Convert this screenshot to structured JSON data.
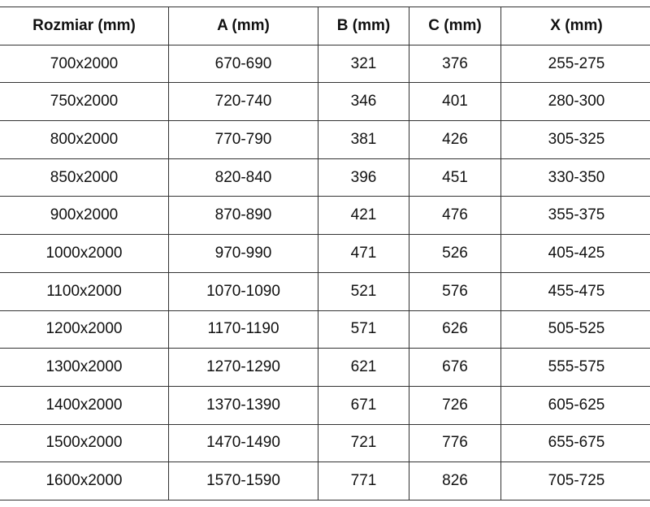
{
  "headers": [
    "Rozmiar (mm)",
    "A (mm)",
    "B (mm)",
    "C (mm)",
    "X (mm)"
  ],
  "rows": [
    [
      "700x2000",
      "670-690",
      "321",
      "376",
      "255-275"
    ],
    [
      "750x2000",
      "720-740",
      "346",
      "401",
      "280-300"
    ],
    [
      "800x2000",
      "770-790",
      "381",
      "426",
      "305-325"
    ],
    [
      "850x2000",
      "820-840",
      "396",
      "451",
      "330-350"
    ],
    [
      "900x2000",
      "870-890",
      "421",
      "476",
      "355-375"
    ],
    [
      "1000x2000",
      "970-990",
      "471",
      "526",
      "405-425"
    ],
    [
      "1100x2000",
      "1070-1090",
      "521",
      "576",
      "455-475"
    ],
    [
      "1200x2000",
      "1170-1190",
      "571",
      "626",
      "505-525"
    ],
    [
      "1300x2000",
      "1270-1290",
      "621",
      "676",
      "555-575"
    ],
    [
      "1400x2000",
      "1370-1390",
      "671",
      "726",
      "605-625"
    ],
    [
      "1500x2000",
      "1470-1490",
      "721",
      "776",
      "655-675"
    ],
    [
      "1600x2000",
      "1570-1590",
      "771",
      "826",
      "705-725"
    ]
  ]
}
